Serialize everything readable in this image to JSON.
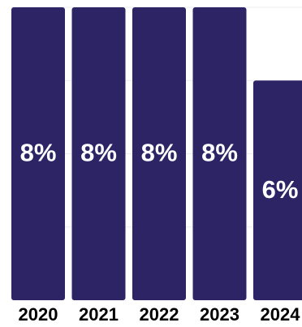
{
  "chart_data": {
    "type": "bar",
    "categories": [
      "2020",
      "2021",
      "2022",
      "2023",
      "2024"
    ],
    "values": [
      8,
      8,
      8,
      8,
      6
    ],
    "value_labels": [
      "8%",
      "8%",
      "8%",
      "8%",
      "6%"
    ],
    "unit": "%",
    "ylim": [
      0,
      8
    ],
    "grid": true,
    "colors": {
      "bar": "#2d2466",
      "label": "#ffffff",
      "tick": "#000000"
    }
  }
}
